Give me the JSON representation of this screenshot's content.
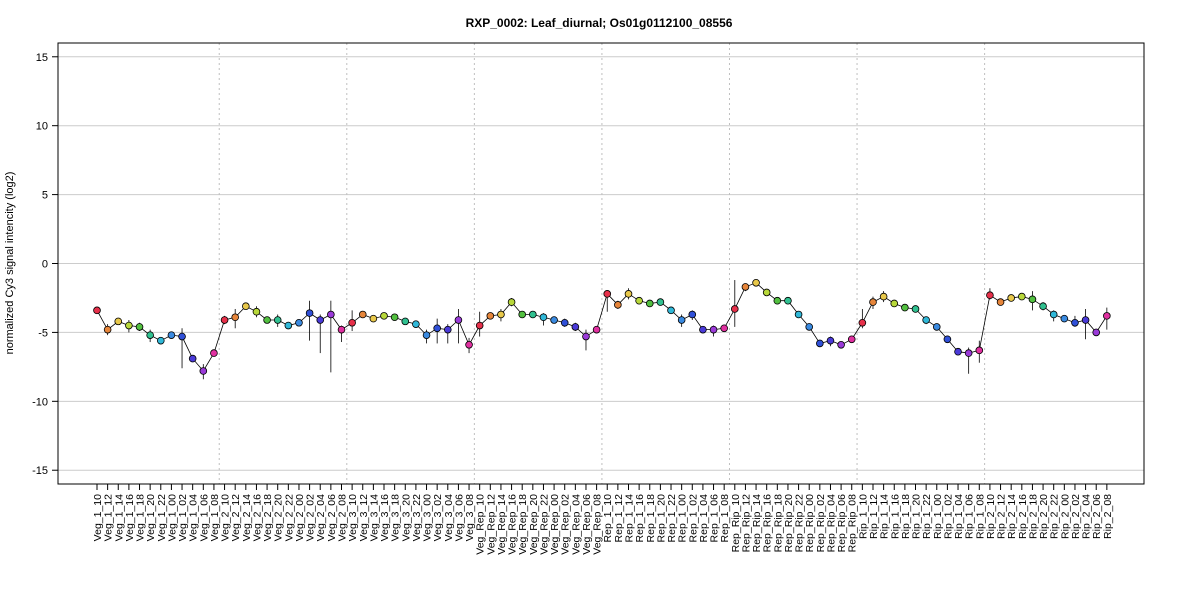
{
  "chart_data": {
    "type": "line",
    "title": "RXP_0002: Leaf_diurnal; Os01g0112100_08556",
    "ylabel": "normalized Cy3 signal intencity (log2)",
    "xlabel": "",
    "ylim": [
      -16,
      16
    ],
    "yticks": [
      -15,
      -10,
      -5,
      0,
      5,
      10,
      15
    ],
    "grid": true,
    "categories": [
      "Veg_1_10",
      "Veg_1_12",
      "Veg_1_14",
      "Veg_1_16",
      "Veg_1_18",
      "Veg_1_20",
      "Veg_1_22",
      "Veg_1_00",
      "Veg_1_02",
      "Veg_1_04",
      "Veg_1_06",
      "Veg_1_08",
      "Veg_2_10",
      "Veg_2_12",
      "Veg_2_14",
      "Veg_2_16",
      "Veg_2_18",
      "Veg_2_20",
      "Veg_2_22",
      "Veg_2_00",
      "Veg_2_02",
      "Veg_2_04",
      "Veg_2_06",
      "Veg_2_08",
      "Veg_3_10",
      "Veg_3_12",
      "Veg_3_14",
      "Veg_3_16",
      "Veg_3_18",
      "Veg_3_20",
      "Veg_3_22",
      "Veg_3_00",
      "Veg_3_02",
      "Veg_3_04",
      "Veg_3_06",
      "Veg_3_08",
      "Veg_Rep_10",
      "Veg_Rep_12",
      "Veg_Rep_14",
      "Veg_Rep_16",
      "Veg_Rep_18",
      "Veg_Rep_20",
      "Veg_Rep_22",
      "Veg_Rep_00",
      "Veg_Rep_02",
      "Veg_Rep_04",
      "Veg_Rep_06",
      "Veg_Rep_08",
      "Rep_1_10",
      "Rep_1_12",
      "Rep_1_14",
      "Rep_1_16",
      "Rep_1_18",
      "Rep_1_20",
      "Rep_1_22",
      "Rep_1_00",
      "Rep_1_02",
      "Rep_1_04",
      "Rep_1_06",
      "Rep_1_08",
      "Rep_Rip_10",
      "Rep_Rip_12",
      "Rep_Rip_14",
      "Rep_Rip_16",
      "Rep_Rip_18",
      "Rep_Rip_20",
      "Rep_Rip_22",
      "Rep_Rip_00",
      "Rep_Rip_02",
      "Rep_Rip_04",
      "Rep_Rip_06",
      "Rep_Rip_08",
      "Rip_1_10",
      "Rip_1_12",
      "Rip_1_14",
      "Rip_1_16",
      "Rip_1_18",
      "Rip_1_20",
      "Rip_1_22",
      "Rip_1_00",
      "Rip_1_02",
      "Rip_1_04",
      "Rip_1_06",
      "Rip_1_08",
      "Rip_2_10",
      "Rip_2_12",
      "Rip_2_14",
      "Rip_2_16",
      "Rip_2_18",
      "Rip_2_20",
      "Rip_2_22",
      "Rip_2_00",
      "Rip_2_02",
      "Rip_2_04",
      "Rip_2_06",
      "Rip_2_08"
    ],
    "values": [
      -3.4,
      -4.8,
      -4.2,
      -4.5,
      -4.6,
      -5.2,
      -5.6,
      -5.2,
      -5.3,
      -6.9,
      -7.8,
      -6.5,
      -4.1,
      -3.9,
      -3.1,
      -3.5,
      -4.1,
      -4.1,
      -4.5,
      -4.3,
      -3.6,
      -4.1,
      -3.7,
      -4.8,
      -4.3,
      -3.7,
      -4.0,
      -3.8,
      -3.9,
      -4.2,
      -4.4,
      -5.2,
      -4.7,
      -4.8,
      -4.1,
      -5.9,
      -4.5,
      -3.8,
      -3.7,
      -2.8,
      -3.7,
      -3.7,
      -3.9,
      -4.1,
      -4.3,
      -4.6,
      -5.3,
      -4.8,
      -2.2,
      -3.0,
      -2.2,
      -2.7,
      -2.9,
      -2.8,
      -3.4,
      -4.1,
      -3.7,
      -4.8,
      -4.8,
      -4.7,
      -3.3,
      -1.7,
      -1.4,
      -2.1,
      -2.7,
      -2.7,
      -3.7,
      -4.6,
      -5.8,
      -5.6,
      -5.9,
      -5.5,
      -4.3,
      -2.8,
      -2.4,
      -2.9,
      -3.2,
      -3.3,
      -4.1,
      -4.6,
      -5.5,
      -6.4,
      -6.5,
      -6.3,
      -2.3,
      -2.8,
      -2.5,
      -2.4,
      -2.6,
      -3.1,
      -3.7,
      -4.0,
      -4.3,
      -4.1,
      -5.0,
      -3.8
    ],
    "error_low": [
      -3.5,
      -5.2,
      -4.3,
      -5.0,
      -4.9,
      -5.7,
      -5.7,
      -5.3,
      -7.6,
      -7.1,
      -8.4,
      -6.6,
      -4.4,
      -4.7,
      -3.2,
      -3.9,
      -4.2,
      -4.6,
      -4.6,
      -4.5,
      -5.6,
      -6.5,
      -7.9,
      -5.7,
      -4.9,
      -3.8,
      -4.2,
      -3.9,
      -4.0,
      -4.3,
      -4.5,
      -5.8,
      -5.8,
      -5.8,
      -5.8,
      -6.5,
      -5.3,
      -3.9,
      -4.2,
      -3.1,
      -3.9,
      -3.8,
      -4.5,
      -4.3,
      -4.6,
      -4.9,
      -6.3,
      -5.0,
      -3.5,
      -3.3,
      -2.6,
      -2.8,
      -3.0,
      -3.0,
      -3.5,
      -4.6,
      -4.1,
      -4.9,
      -5.3,
      -4.8,
      -4.6,
      -2.0,
      -1.6,
      -2.2,
      -2.8,
      -2.8,
      -3.8,
      -4.7,
      -5.9,
      -6.0,
      -6.0,
      -5.6,
      -4.7,
      -3.3,
      -2.8,
      -3.1,
      -3.3,
      -3.5,
      -4.4,
      -4.7,
      -5.6,
      -6.6,
      -8.0,
      -7.2,
      -2.6,
      -2.9,
      -2.6,
      -2.6,
      -3.4,
      -3.4,
      -4.2,
      -4.1,
      -4.6,
      -5.5,
      -5.1,
      -4.8
    ],
    "error_high": [
      -3.3,
      -4.4,
      -4.1,
      -4.1,
      -4.3,
      -4.8,
      -5.5,
      -5.1,
      -4.7,
      -6.7,
      -7.3,
      -6.3,
      -3.8,
      -3.3,
      -3.0,
      -3.1,
      -4.0,
      -3.7,
      -4.4,
      -4.1,
      -2.7,
      -3.7,
      -2.7,
      -4.5,
      -3.4,
      -3.6,
      -3.8,
      -3.6,
      -3.8,
      -4.1,
      -4.3,
      -4.8,
      -4.0,
      -4.4,
      -3.3,
      -5.4,
      -3.5,
      -3.7,
      -3.3,
      -2.5,
      -3.5,
      -3.6,
      -3.6,
      -4.0,
      -4.0,
      -4.3,
      -4.8,
      -4.6,
      -2.0,
      -2.7,
      -1.8,
      -2.6,
      -2.8,
      -2.6,
      -3.3,
      -3.7,
      -3.4,
      -4.7,
      -4.5,
      -4.5,
      -1.2,
      -1.5,
      -1.2,
      -2.0,
      -2.6,
      -2.6,
      -3.6,
      -4.5,
      -5.7,
      -5.3,
      -5.8,
      -5.3,
      -3.3,
      -2.4,
      -2.0,
      -2.8,
      -3.1,
      -3.1,
      -3.9,
      -4.4,
      -5.3,
      -6.2,
      -6.1,
      -5.6,
      -1.8,
      -2.6,
      -2.4,
      -2.2,
      -2.0,
      -2.8,
      -3.4,
      -3.8,
      -3.8,
      -3.3,
      -4.9,
      -3.2
    ],
    "group_size": 12,
    "point_colors": [
      "#e6304a",
      "#e6853a",
      "#e8c84a",
      "#b8d83a",
      "#52c040",
      "#30c090",
      "#30b8d8",
      "#3a8ae0",
      "#3050d8",
      "#4a3ad8",
      "#9a3ad8",
      "#e030a0"
    ],
    "line_color": "#000000",
    "grid_color": "#cccccc",
    "separator_color": "#bfbfbf"
  }
}
